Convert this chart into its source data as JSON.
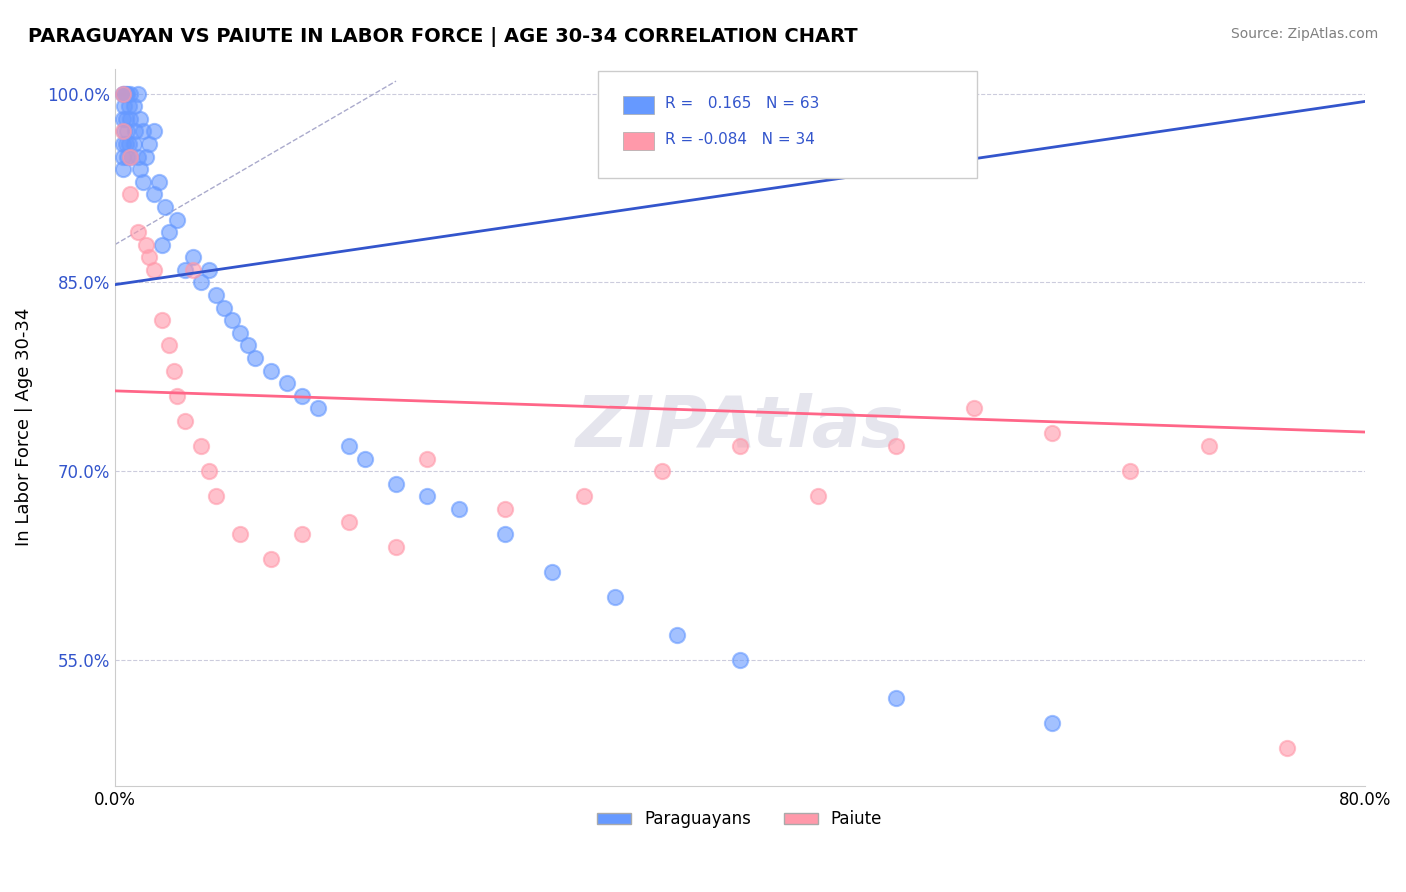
{
  "title": "PARAGUAYAN VS PAIUTE IN LABOR FORCE | AGE 30-34 CORRELATION CHART",
  "source_text": "Source: ZipAtlas.com",
  "ylabel": "In Labor Force | Age 30-34",
  "xlabel": "",
  "xlim": [
    0.0,
    0.8
  ],
  "ylim": [
    0.45,
    1.02
  ],
  "ytick_vals": [
    0.55,
    0.7,
    0.85,
    1.0
  ],
  "ytick_labels": [
    "55.0%",
    "70.0%",
    "85.0%",
    "100.0%"
  ],
  "xtick_vals": [
    0.0,
    0.2,
    0.4,
    0.6,
    0.8
  ],
  "xtick_labels": [
    "0.0%",
    "",
    "",
    "",
    "80.0%"
  ],
  "blue_R": 0.165,
  "blue_N": 63,
  "pink_R": -0.084,
  "pink_N": 34,
  "blue_color": "#6699ff",
  "pink_color": "#ff99aa",
  "blue_line_color": "#3355cc",
  "pink_line_color": "#ff6688",
  "dashed_line_color": "#aaaacc",
  "grid_color": "#ccccdd",
  "watermark_text": "ZIPAtlas",
  "blue_scatter_x": [
    0.005,
    0.005,
    0.005,
    0.005,
    0.005,
    0.006,
    0.006,
    0.006,
    0.007,
    0.007,
    0.007,
    0.008,
    0.008,
    0.008,
    0.009,
    0.009,
    0.01,
    0.01,
    0.01,
    0.012,
    0.012,
    0.013,
    0.015,
    0.015,
    0.016,
    0.016,
    0.018,
    0.018,
    0.02,
    0.022,
    0.025,
    0.025,
    0.028,
    0.03,
    0.032,
    0.035,
    0.04,
    0.045,
    0.05,
    0.055,
    0.06,
    0.065,
    0.07,
    0.075,
    0.08,
    0.085,
    0.09,
    0.1,
    0.11,
    0.12,
    0.13,
    0.15,
    0.16,
    0.18,
    0.2,
    0.22,
    0.25,
    0.28,
    0.32,
    0.36,
    0.4,
    0.5,
    0.6
  ],
  "blue_scatter_y": [
    1.0,
    0.98,
    0.96,
    0.95,
    0.94,
    1.0,
    0.99,
    0.97,
    1.0,
    0.98,
    0.96,
    1.0,
    0.97,
    0.95,
    0.99,
    0.96,
    1.0,
    0.98,
    0.95,
    0.99,
    0.96,
    0.97,
    1.0,
    0.95,
    0.98,
    0.94,
    0.97,
    0.93,
    0.95,
    0.96,
    0.97,
    0.92,
    0.93,
    0.88,
    0.91,
    0.89,
    0.9,
    0.86,
    0.87,
    0.85,
    0.86,
    0.84,
    0.83,
    0.82,
    0.81,
    0.8,
    0.79,
    0.78,
    0.77,
    0.76,
    0.75,
    0.72,
    0.71,
    0.69,
    0.68,
    0.67,
    0.65,
    0.62,
    0.6,
    0.57,
    0.55,
    0.52,
    0.5
  ],
  "pink_scatter_x": [
    0.005,
    0.005,
    0.01,
    0.01,
    0.015,
    0.02,
    0.022,
    0.025,
    0.03,
    0.035,
    0.038,
    0.04,
    0.045,
    0.05,
    0.055,
    0.06,
    0.065,
    0.08,
    0.1,
    0.12,
    0.15,
    0.18,
    0.2,
    0.25,
    0.3,
    0.35,
    0.4,
    0.45,
    0.5,
    0.55,
    0.6,
    0.65,
    0.7,
    0.75
  ],
  "pink_scatter_y": [
    1.0,
    0.97,
    0.95,
    0.92,
    0.89,
    0.88,
    0.87,
    0.86,
    0.82,
    0.8,
    0.78,
    0.76,
    0.74,
    0.86,
    0.72,
    0.7,
    0.68,
    0.65,
    0.63,
    0.65,
    0.66,
    0.64,
    0.71,
    0.67,
    0.68,
    0.7,
    0.72,
    0.68,
    0.72,
    0.75,
    0.73,
    0.7,
    0.72,
    0.48
  ]
}
